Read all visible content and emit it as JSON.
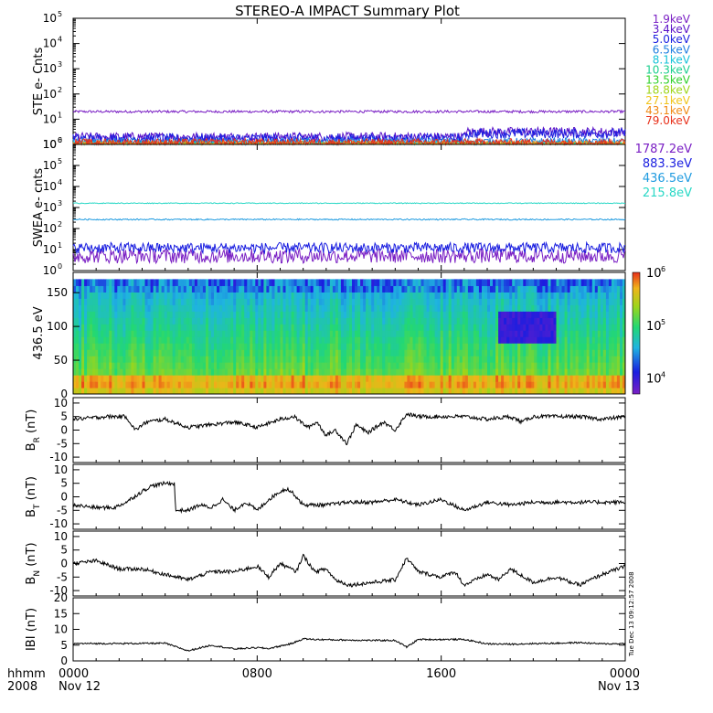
{
  "title": "STEREO-A IMPACT Summary Plot",
  "footer": {
    "row1_label": "hhmm",
    "row2_label": "2008",
    "x_ticks": [
      "0000",
      "0800",
      "1600",
      "0000"
    ],
    "date_labels": [
      "Nov 12",
      "",
      "",
      "Nov 13"
    ]
  },
  "side_stamp": "Tue Dec 13 09:12:57 2008",
  "chart_data": [
    {
      "id": "ste",
      "type": "line",
      "ylabel": "STE e- Cnts",
      "y_scale": "log",
      "ylim": [
        1,
        100000
      ],
      "ytick_exponents": [
        0,
        1,
        2,
        3,
        4,
        5
      ],
      "legend_title": "",
      "series": [
        {
          "name": "1.9keV",
          "color": "#7a1fc4",
          "level": 20,
          "noise": 0.05
        },
        {
          "name": "3.4keV",
          "color": "#5a12c8",
          "level": 2.0,
          "noise": 0.18
        },
        {
          "name": "5.0keV",
          "color": "#1a1ee0",
          "level": 1.7,
          "noise": 0.2
        },
        {
          "name": "6.5keV",
          "color": "#1f7fe0",
          "level": 1.3,
          "noise": 0.15
        },
        {
          "name": "8.1keV",
          "color": "#16c2d8",
          "level": 1.1,
          "noise": 0.1
        },
        {
          "name": "10.3keV",
          "color": "#1ccf8f",
          "level": 1.05,
          "noise": 0.08
        },
        {
          "name": "13.5keV",
          "color": "#2fd12a",
          "level": 1.0,
          "noise": 0.05
        },
        {
          "name": "18.8keV",
          "color": "#9ed51a",
          "level": 1.0,
          "noise": 0.05
        },
        {
          "name": "27.1keV",
          "color": "#f0c419",
          "level": 1.0,
          "noise": 0.05
        },
        {
          "name": "43.1keV",
          "color": "#f08a14",
          "level": 1.1,
          "noise": 0.1
        },
        {
          "name": "79.0keV",
          "color": "#e8301a",
          "level": 1.2,
          "noise": 0.15
        }
      ]
    },
    {
      "id": "swea",
      "type": "line",
      "ylabel": "SWEA e- cnts",
      "y_scale": "log",
      "ylim": [
        1,
        1000000
      ],
      "ytick_exponents": [
        0,
        1,
        2,
        3,
        4,
        5,
        6
      ],
      "series": [
        {
          "name": "1787.2eV",
          "color": "#7a1fc4",
          "level": 5,
          "noise": 0.35
        },
        {
          "name": "883.3eV",
          "color": "#1a1ee0",
          "level": 12,
          "noise": 0.25
        },
        {
          "name": "436.5eV",
          "color": "#1f9be0",
          "level": 270,
          "noise": 0.03
        },
        {
          "name": "215.8eV",
          "color": "#2ad8c6",
          "level": 1600,
          "noise": 0.02
        }
      ]
    },
    {
      "id": "spec",
      "type": "heatmap",
      "ylabel": "436.5 eV",
      "ylim": [
        0,
        180
      ],
      "yticks": [
        0,
        50,
        100,
        150
      ],
      "colorbar": {
        "scale": "log",
        "min": 5000,
        "max": 1000000,
        "tick_labels": [
          {
            "mant": "10",
            "exp": "6",
            "value": 1000000
          },
          {
            "mant": "10",
            "exp": "5",
            "value": 100000
          },
          {
            "mant": "10",
            "exp": "4",
            "value": 10000
          }
        ]
      },
      "features": [
        {
          "what": "low-flux band",
          "x_hours": [
            18.4,
            21.0
          ],
          "pitch": [
            75,
            125
          ],
          "value": 8000
        }
      ]
    },
    {
      "id": "br",
      "type": "line",
      "ylabel_main": "B",
      "ylabel_sub": "R",
      "ylabel_unit": " (nT)",
      "ylim": [
        -12,
        12
      ],
      "yticks": [
        10,
        5,
        0,
        -5,
        -10
      ],
      "color": "#000000",
      "x_hours": [
        0,
        1.5,
        2.3,
        2.7,
        3.2,
        4,
        5,
        6,
        7,
        8,
        9,
        9.6,
        10.2,
        10.6,
        11,
        11.4,
        11.9,
        12.3,
        12.8,
        13.5,
        14,
        14.5,
        15,
        16,
        17,
        18,
        19,
        19.5,
        20,
        21,
        22,
        23,
        24
      ],
      "values": [
        4,
        5,
        5,
        0,
        3,
        4,
        1,
        2,
        3,
        1,
        4,
        5,
        1,
        3,
        -2,
        0,
        -5,
        2,
        -1,
        3,
        0,
        6,
        5,
        5,
        5,
        4,
        5,
        3,
        5,
        5,
        5,
        4,
        5
      ]
    },
    {
      "id": "bt",
      "type": "line",
      "ylabel_main": "B",
      "ylabel_sub": "T",
      "ylabel_unit": " (nT)",
      "ylim": [
        -12,
        12
      ],
      "yticks": [
        10,
        5,
        0,
        -5,
        -10
      ],
      "color": "#000000",
      "x_hours": [
        0,
        1,
        1.8,
        2.3,
        3,
        3.4,
        4,
        4.4,
        4.45,
        5,
        5.5,
        6,
        6.5,
        7,
        7.5,
        8,
        8.5,
        9,
        9.3,
        9.6,
        10,
        11,
        12,
        13,
        14,
        15,
        16,
        17,
        18,
        19,
        20,
        21,
        22,
        23,
        24
      ],
      "values": [
        -3,
        -4,
        -4,
        -2,
        2,
        4,
        5,
        5,
        -5,
        -5,
        -3,
        -4,
        -1,
        -5,
        -2,
        -5,
        -1,
        2,
        3,
        1,
        -3,
        -3,
        -2,
        -2,
        -1,
        -3,
        -1,
        -5,
        -2,
        -3,
        -2,
        -2,
        -2,
        -2,
        -2
      ]
    },
    {
      "id": "bn",
      "type": "line",
      "ylabel_main": "B",
      "ylabel_sub": "N",
      "ylabel_unit": " (nT)",
      "ylim": [
        -12,
        12
      ],
      "yticks": [
        10,
        5,
        0,
        -5,
        -10
      ],
      "color": "#000000",
      "x_hours": [
        0,
        1,
        2,
        3,
        4,
        5,
        6,
        7,
        8,
        8.5,
        9,
        9.7,
        10,
        10.5,
        11,
        11.4,
        12,
        13,
        14,
        14.5,
        15,
        16,
        16.6,
        17,
        18,
        18.5,
        19,
        20,
        21,
        22,
        23,
        24
      ],
      "values": [
        0,
        1,
        -2,
        -2,
        -4,
        -6,
        -3,
        -3,
        -1,
        -5,
        0,
        -3,
        3,
        -3,
        -2,
        -6,
        -8,
        -7,
        -6,
        2,
        -3,
        -5,
        -3,
        -8,
        -4,
        -6,
        -2,
        -7,
        -5,
        -8,
        -4,
        -1
      ]
    },
    {
      "id": "bmag",
      "type": "line",
      "ylabel_main": "IBI",
      "ylabel_sub": "",
      "ylabel_unit": " (nT)",
      "ylim": [
        0,
        20
      ],
      "yticks": [
        20,
        15,
        10,
        5,
        0
      ],
      "color": "#000000",
      "x_hours": [
        0,
        2,
        4,
        5,
        6,
        7,
        8,
        8.5,
        9.5,
        10,
        10.5,
        12,
        13,
        14,
        14.5,
        15,
        16,
        17,
        18,
        19,
        20,
        21,
        22,
        23,
        24
      ],
      "values": [
        5.5,
        5.5,
        5.6,
        3.2,
        5.0,
        3.8,
        4.2,
        3.9,
        5.5,
        7.0,
        6.8,
        6.6,
        6.5,
        6.5,
        4.4,
        6.8,
        6.8,
        6.8,
        5.4,
        5.3,
        5.5,
        5.6,
        5.8,
        5.4,
        5.5
      ]
    }
  ]
}
